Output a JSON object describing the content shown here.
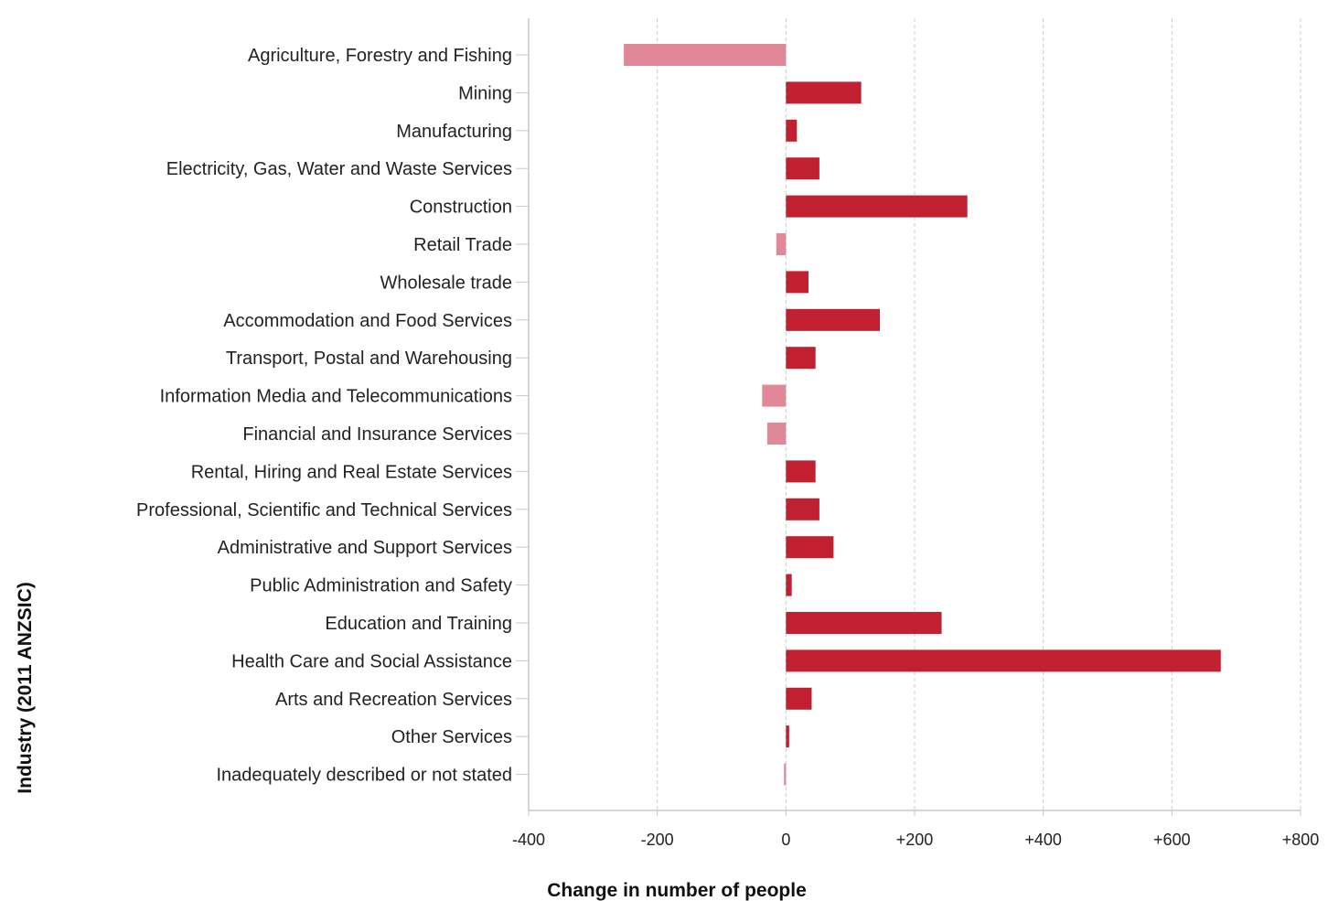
{
  "chart_data": {
    "type": "bar",
    "orientation": "horizontal",
    "xlabel": "Change in number of people",
    "ylabel": "Industry (2011 ANZSIC)",
    "xlim": [
      -400,
      800
    ],
    "xticks": [
      -400,
      -200,
      0,
      200,
      400,
      600,
      800
    ],
    "xtick_labels": [
      "-400",
      "-200",
      "0",
      "+200",
      "+400",
      "+600",
      "+800"
    ],
    "grid": "vertical dashed",
    "colors": {
      "positive": "#c0202f",
      "negative": "#e08898",
      "grid": "#cccccc",
      "axis": "#c8c8c8"
    },
    "categories": [
      "Agriculture, Forestry and Fishing",
      "Mining",
      "Manufacturing",
      "Electricity, Gas, Water and Waste Services",
      "Construction",
      "Retail Trade",
      "Wholesale trade",
      "Accommodation and Food Services",
      "Transport, Postal and Warehousing",
      "Information Media and Telecommunications",
      "Financial and Insurance Services",
      "Rental, Hiring and Real Estate Services",
      "Professional, Scientific and Technical Services",
      "Administrative and Support Services",
      "Public Administration and Safety",
      "Education and Training",
      "Health Care and Social Assistance",
      "Arts and Recreation Services",
      "Other Services",
      "Inadequately described or not stated"
    ],
    "values": [
      -252,
      117,
      17,
      52,
      282,
      -15,
      35,
      146,
      46,
      -37,
      -29,
      46,
      52,
      74,
      9,
      242,
      676,
      40,
      5,
      -3
    ]
  }
}
